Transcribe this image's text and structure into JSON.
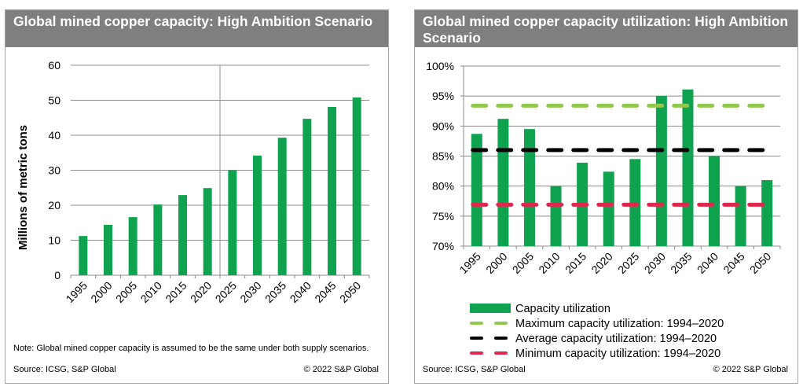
{
  "colors": {
    "bar": "#0fa34f",
    "max_line": "#92c84e",
    "avg_line": "#000000",
    "min_line": "#e0274d",
    "title_bg": "#7f7f7f",
    "grid": "#8c8c8c"
  },
  "left": {
    "title": "Global mined copper capacity: High Ambition Scenario",
    "note": "Note: Global mined copper capacity is assumed to be the same under both supply scenarios.",
    "source": "Source: ICSG, S&P Global",
    "copyright": "© 2022 S&P Global"
  },
  "right": {
    "title": "Global mined copper capacity utilization: High Ambition Scenario",
    "source": "Source: ICSG, S&P Global",
    "copyright": "© 2022 S&P Global"
  },
  "chart_data": [
    {
      "type": "bar",
      "title": "Global mined copper capacity: High Ambition Scenario",
      "xlabel": "",
      "ylabel": "Millions of metric tons",
      "categories": [
        "1995",
        "2000",
        "2005",
        "2010",
        "2015",
        "2020",
        "2025",
        "2030",
        "2035",
        "2040",
        "2045",
        "2050"
      ],
      "values": [
        11.2,
        14.4,
        16.6,
        20.2,
        22.9,
        24.9,
        30.0,
        34.2,
        39.3,
        44.7,
        48.1,
        50.8
      ],
      "ylim": [
        0,
        60
      ],
      "yticks": [
        0,
        10,
        20,
        30,
        40,
        50,
        60
      ],
      "ytick_labels": [
        "0",
        "10",
        "20",
        "30",
        "40",
        "50",
        "60"
      ],
      "grid": true,
      "divider_after": "2020"
    },
    {
      "type": "bar",
      "title": "Global mined copper capacity utilization: High Ambition Scenario",
      "xlabel": "",
      "ylabel": "",
      "categories": [
        "1995",
        "2000",
        "2005",
        "2010",
        "2015",
        "2020",
        "2025",
        "2030",
        "2035",
        "2040",
        "2045",
        "2050"
      ],
      "series": [
        {
          "name": "Capacity utilization",
          "kind": "bar",
          "values": [
            88.7,
            91.2,
            89.5,
            80.0,
            83.9,
            82.4,
            84.5,
            95.0,
            96.1,
            85.0,
            80.0,
            81.0
          ]
        },
        {
          "name": "Maximum capacity utilization: 1994–2020",
          "kind": "dashed-line",
          "value": 93.4
        },
        {
          "name": "Average capacity utilization: 1994–2020",
          "kind": "dashed-line",
          "value": 86.0
        },
        {
          "name": "Minimum capacity utilization: 1994–2020",
          "kind": "dashed-line",
          "value": 76.9
        }
      ],
      "ylim": [
        70,
        100
      ],
      "yticks": [
        70,
        75,
        80,
        85,
        90,
        95,
        100
      ],
      "ytick_labels": [
        "70%",
        "75%",
        "80%",
        "85%",
        "90%",
        "95%",
        "100%"
      ],
      "grid": true,
      "legend_position": "bottom"
    }
  ]
}
